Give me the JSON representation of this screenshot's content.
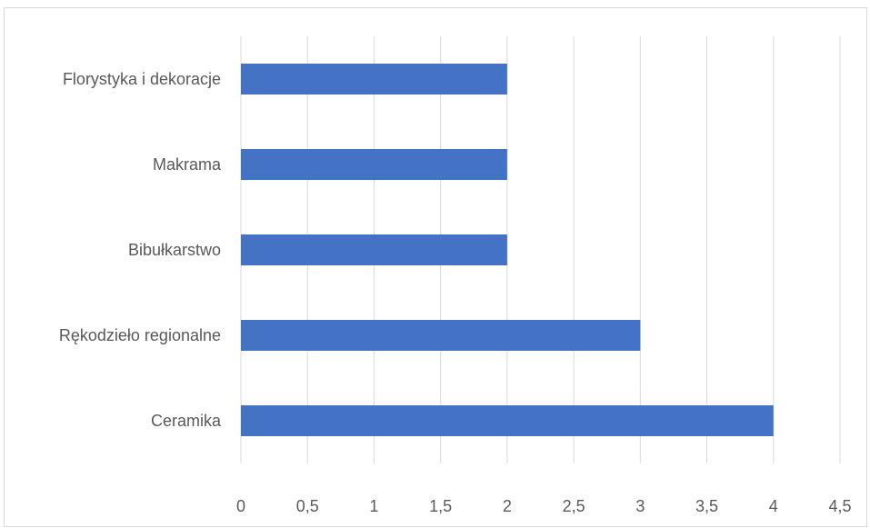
{
  "chart_data": {
    "type": "bar",
    "orientation": "horizontal",
    "title": "",
    "xlabel": "",
    "ylabel": "",
    "categories": [
      "Florystyka i dekoracje",
      "Makrama",
      "Bibułkarstwo",
      "Rękodzieło regionalne",
      "Ceramika"
    ],
    "values": [
      2,
      2,
      2,
      3,
      4
    ],
    "xlim": [
      0,
      4.5
    ],
    "x_ticks": [
      "0",
      "0,5",
      "1",
      "1,5",
      "2",
      "2,5",
      "3",
      "3,5",
      "4",
      "4,5"
    ],
    "grid": "vertical",
    "legend": "none",
    "colors": {
      "bar": "#4472c4",
      "grid": "#d9d9d9",
      "text": "#595959",
      "frame": "#d9d9d9"
    }
  }
}
